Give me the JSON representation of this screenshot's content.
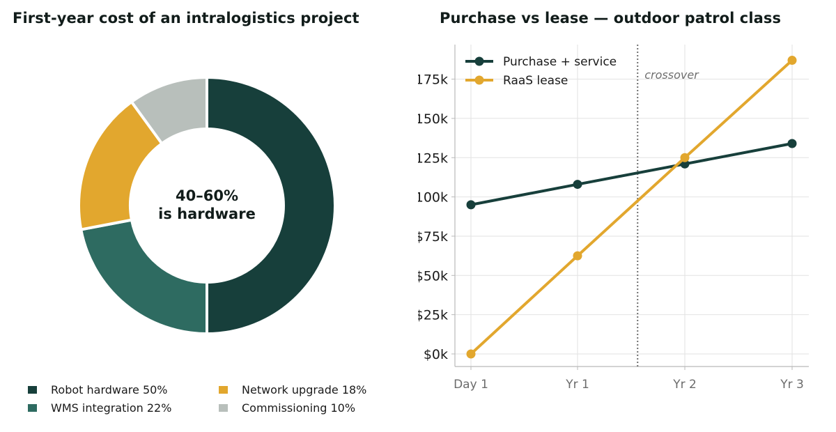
{
  "chart_data": [
    {
      "type": "pie",
      "title": "First-year cost of an intralogistics project",
      "center_label_lines": [
        "40–60%",
        "is hardware"
      ],
      "slices": [
        {
          "name": "Robot hardware",
          "value": 50,
          "label": "Robot hardware  50%",
          "color": "#173f3b"
        },
        {
          "name": "WMS integration",
          "value": 22,
          "label": "WMS integration  22%",
          "color": "#2e6b61"
        },
        {
          "name": "Network upgrade",
          "value": 18,
          "label": "Network upgrade  18%",
          "color": "#e2a72e"
        },
        {
          "name": "Commissioning",
          "value": 10,
          "label": "Commissioning  10%",
          "color": "#b8bfbb"
        }
      ],
      "legend_position": "bottom"
    },
    {
      "type": "line",
      "title": "Purchase vs lease — outdoor patrol class",
      "x": [
        "Day 1",
        "Yr 1",
        "Yr 2",
        "Yr 3"
      ],
      "series": [
        {
          "name": "Purchase + service",
          "values": [
            95000,
            108000,
            121000,
            134000
          ],
          "color": "#173f3b"
        },
        {
          "name": "RaaS lease",
          "values": [
            0,
            62500,
            125000,
            187000
          ],
          "color": "#e2a72e"
        }
      ],
      "ylim": [
        -8000,
        197000
      ],
      "yticks": [
        0,
        25000,
        50000,
        75000,
        100000,
        125000,
        150000,
        175000
      ],
      "ytick_labels": [
        "$0k",
        "$25k",
        "$50k",
        "$75k",
        "$100k",
        "$125k",
        "$150k",
        "$175k"
      ],
      "crossover_x": 1.56,
      "crossover_label": "crossover",
      "grid": true,
      "legend_position": "top-left"
    }
  ]
}
